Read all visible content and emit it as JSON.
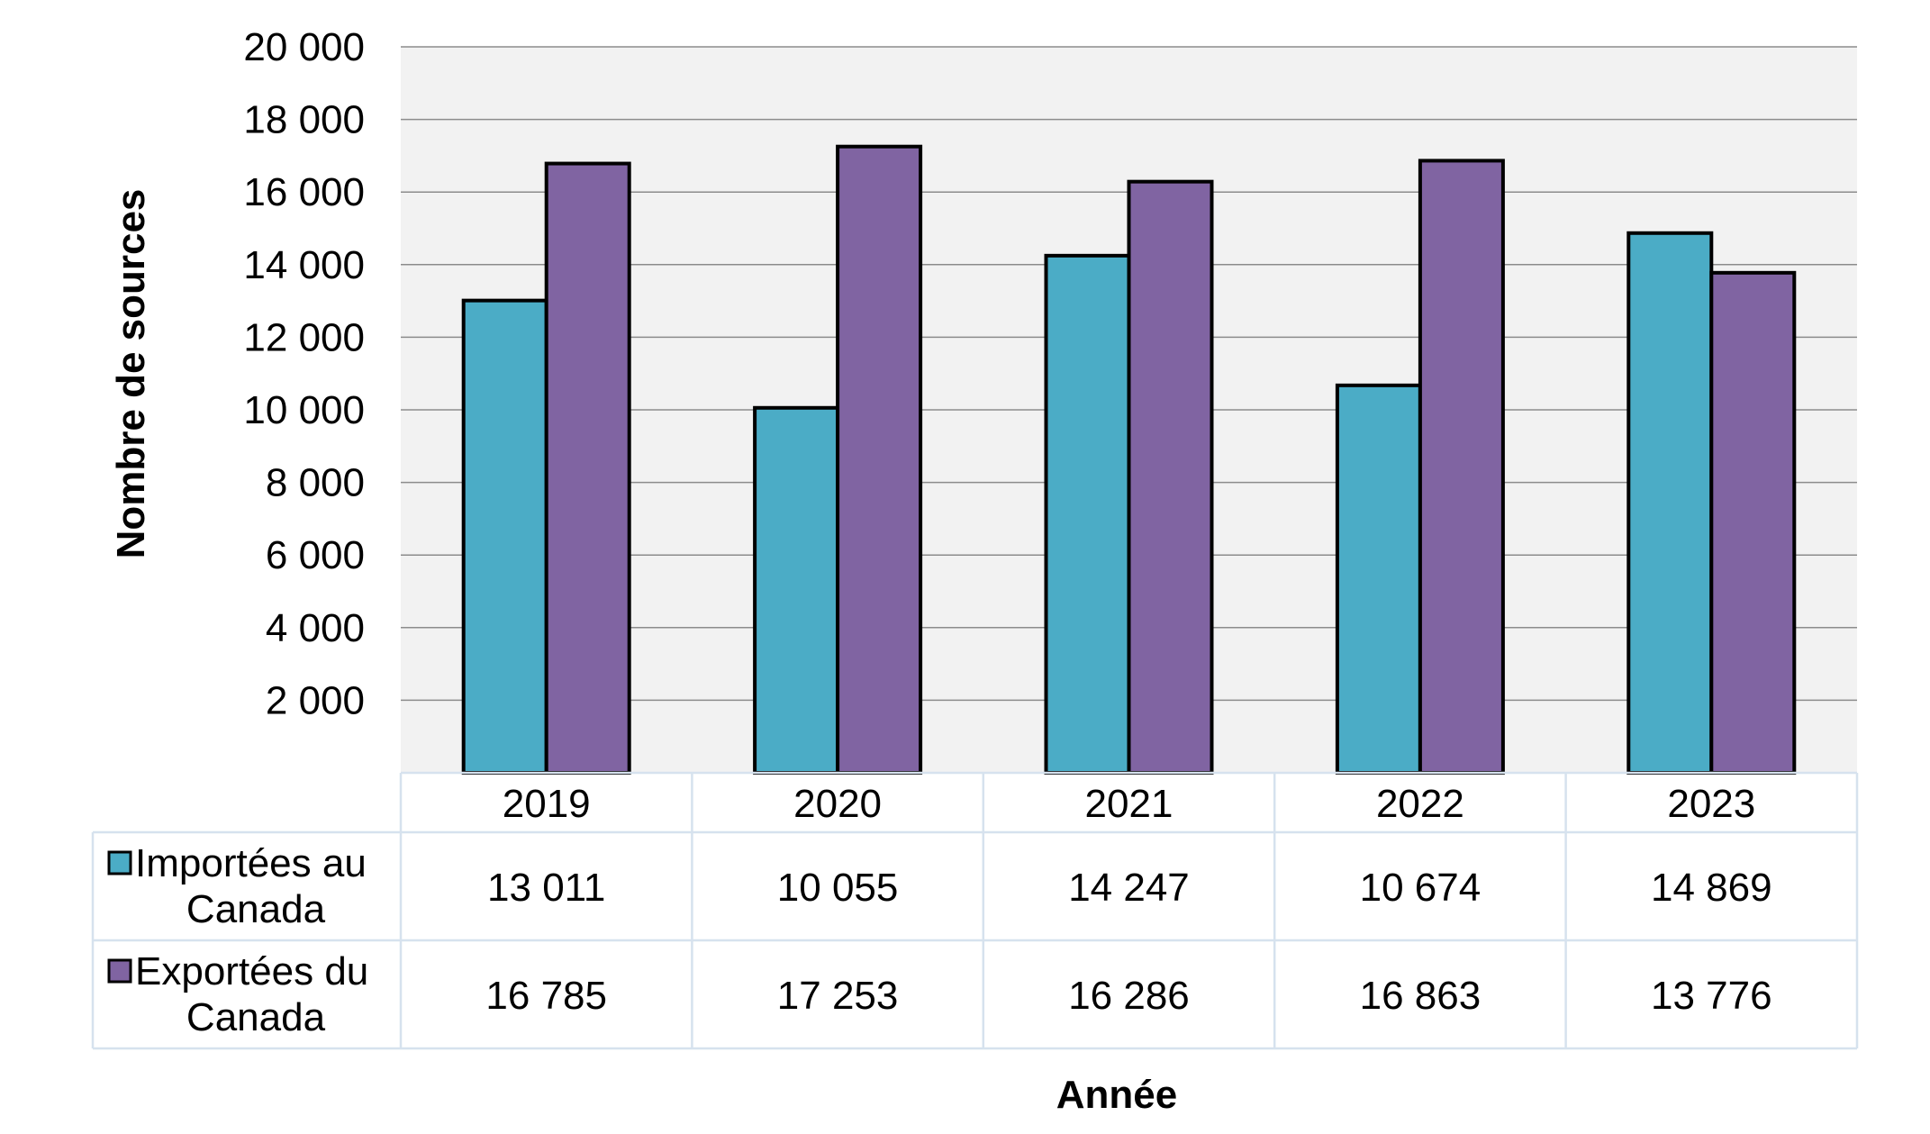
{
  "chart_data": {
    "type": "bar",
    "categories": [
      "2019",
      "2020",
      "2021",
      "2022",
      "2023"
    ],
    "series": [
      {
        "name": "Importées au Canada",
        "values": [
          13011,
          10055,
          14247,
          10674,
          14869
        ],
        "color": "#4BACC6"
      },
      {
        "name": "Exportées du Canada",
        "values": [
          16785,
          17253,
          16286,
          16863,
          13776
        ],
        "color": "#8064A2"
      }
    ],
    "ylabel": "Nombre de sources",
    "xlabel": "Année",
    "ylim": [
      0,
      20000
    ],
    "yticks": [
      2000,
      4000,
      6000,
      8000,
      10000,
      12000,
      14000,
      16000,
      18000,
      20000
    ],
    "ytick_labels": [
      "2 000",
      "4 000",
      "6 000",
      "8 000",
      "10 000",
      "12 000",
      "14 000",
      "16 000",
      "18 000",
      "20 000"
    ],
    "data_table": {
      "rows": [
        {
          "label_lines": [
            "Importées au",
            "Canada"
          ],
          "values": [
            "13 011",
            "10 055",
            "14 247",
            "10 674",
            "14 869"
          ]
        },
        {
          "label_lines": [
            "Exportées du",
            "Canada"
          ],
          "values": [
            "16 785",
            "17 253",
            "16 286",
            "16 863",
            "13 776"
          ]
        }
      ]
    },
    "grid": true,
    "plot_background": "#F2F2F2",
    "table_border_color": "#D6E2EE"
  }
}
